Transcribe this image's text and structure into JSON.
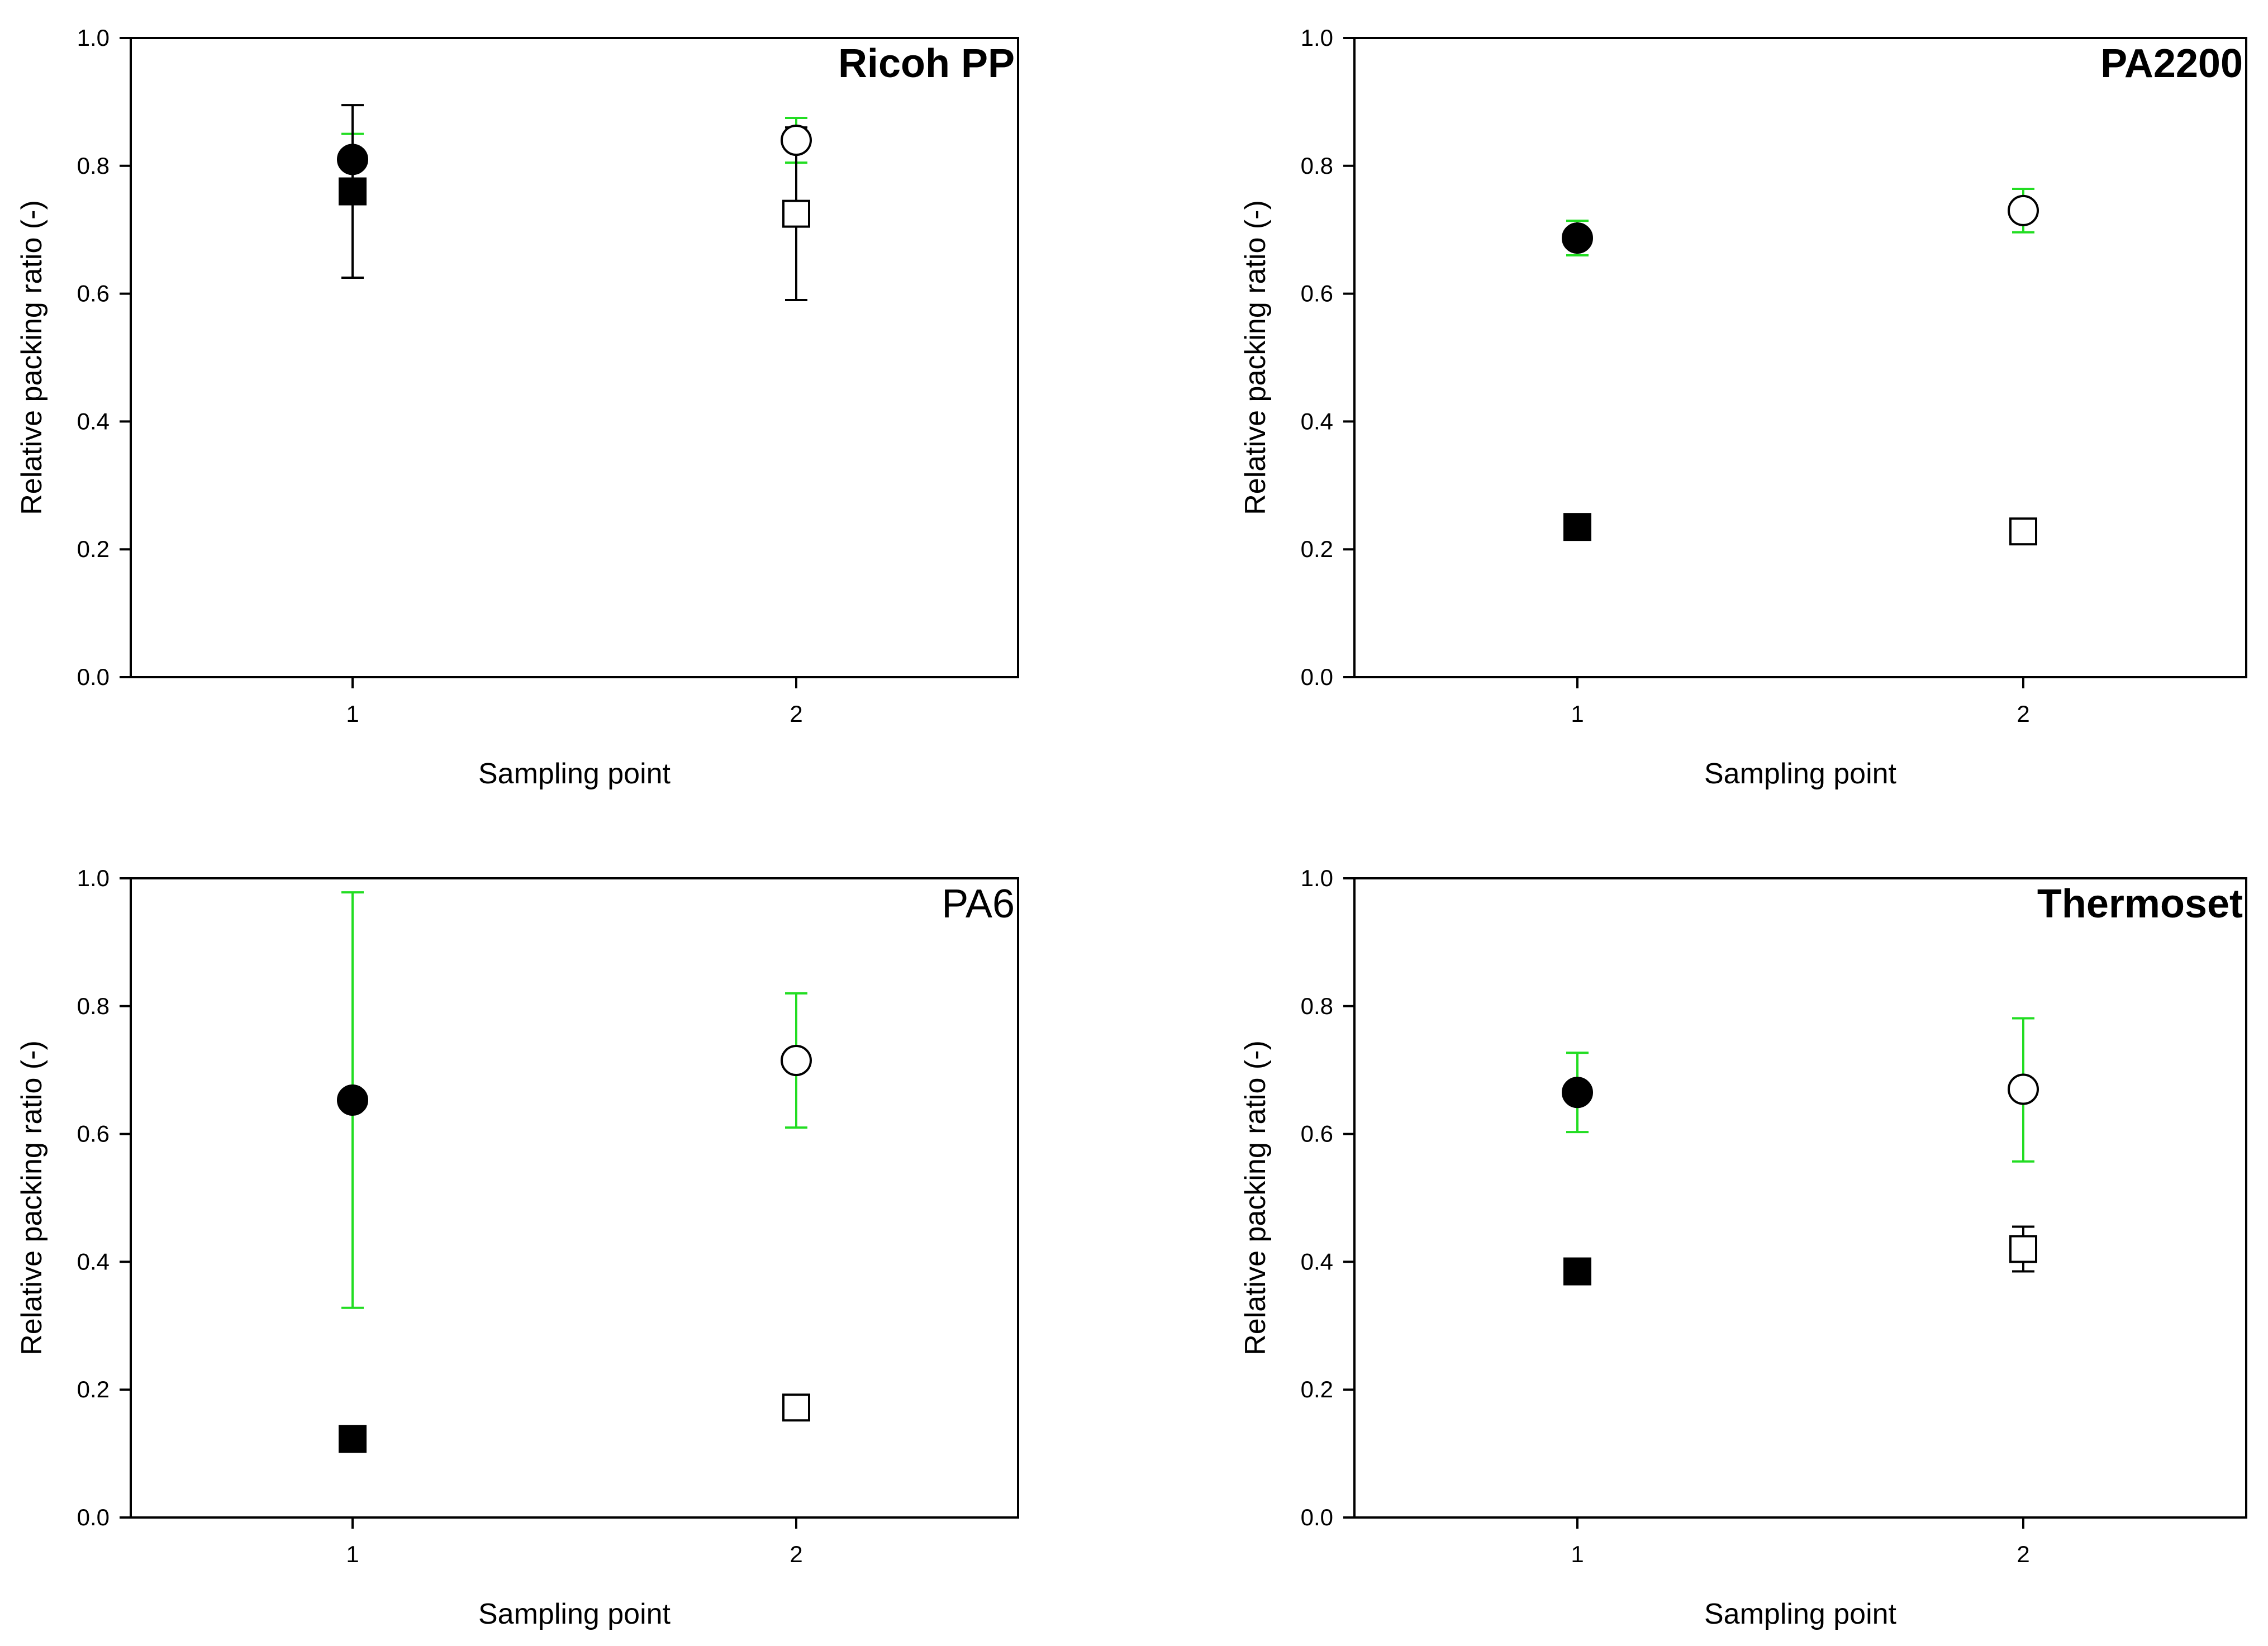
{
  "figure": {
    "colors": {
      "axis": "#000000",
      "error_green": "#22dd22",
      "error_black": "#000000"
    },
    "marker_legend": {
      "filled_circle": "sampling point 1 (circle series)",
      "open_circle": "sampling point 2 (circle series)",
      "filled_square": "sampling point 1 (square series)",
      "open_square": "sampling point 2 (square series)"
    }
  },
  "chart_data": [
    {
      "type": "scatter",
      "title": "Ricoh PP",
      "title_bold": true,
      "xlabel": "Sampling point",
      "ylabel": "Relative packing ratio (-)",
      "xlim": [
        0.5,
        2.5
      ],
      "ylim": [
        0,
        1
      ],
      "xticks": [
        "1",
        "2"
      ],
      "yticks": [
        "0.0",
        "0.2",
        "0.4",
        "0.6",
        "0.8",
        "1.0"
      ],
      "series": [
        {
          "name": "circle",
          "shape": "circle",
          "error_color": "#22dd22",
          "points": [
            {
              "x": 1,
              "y": 0.81,
              "lo": 0.77,
              "hi": 0.85,
              "filled": true
            },
            {
              "x": 2,
              "y": 0.84,
              "lo": 0.805,
              "hi": 0.875,
              "filled": false
            }
          ]
        },
        {
          "name": "square",
          "shape": "square",
          "error_color": "#000000",
          "points": [
            {
              "x": 1,
              "y": 0.76,
              "lo": 0.625,
              "hi": 0.895,
              "filled": true
            },
            {
              "x": 2,
              "y": 0.725,
              "lo": 0.59,
              "hi": 0.86,
              "filled": false
            }
          ]
        }
      ]
    },
    {
      "type": "scatter",
      "title": "PA2200",
      "title_bold": true,
      "xlabel": "Sampling point",
      "ylabel": "Relative packing ratio (-)",
      "xlim": [
        0.5,
        2.5
      ],
      "ylim": [
        0,
        1
      ],
      "xticks": [
        "1",
        "2"
      ],
      "yticks": [
        "0.0",
        "0.2",
        "0.4",
        "0.6",
        "0.8",
        "1.0"
      ],
      "series": [
        {
          "name": "circle",
          "shape": "circle",
          "error_color": "#22dd22",
          "points": [
            {
              "x": 1,
              "y": 0.687,
              "lo": 0.66,
              "hi": 0.714,
              "filled": true
            },
            {
              "x": 2,
              "y": 0.73,
              "lo": 0.696,
              "hi": 0.764,
              "filled": false
            }
          ]
        },
        {
          "name": "square",
          "shape": "square",
          "error_color": "#000000",
          "points": [
            {
              "x": 1,
              "y": 0.235,
              "lo": 0.225,
              "hi": 0.245,
              "filled": true
            },
            {
              "x": 2,
              "y": 0.228,
              "lo": 0.218,
              "hi": 0.238,
              "filled": false
            }
          ]
        }
      ]
    },
    {
      "type": "scatter",
      "title": "PA6",
      "title_bold": false,
      "xlabel": "Sampling point",
      "ylabel": "Relative packing ratio (-)",
      "xlim": [
        0.5,
        2.5
      ],
      "ylim": [
        0,
        1
      ],
      "xticks": [
        "1",
        "2"
      ],
      "yticks": [
        "0.0",
        "0.2",
        "0.4",
        "0.6",
        "0.8",
        "1.0"
      ],
      "series": [
        {
          "name": "circle",
          "shape": "circle",
          "error_color": "#22dd22",
          "points": [
            {
              "x": 1,
              "y": 0.653,
              "lo": 0.328,
              "hi": 0.978,
              "filled": true
            },
            {
              "x": 2,
              "y": 0.715,
              "lo": 0.61,
              "hi": 0.82,
              "filled": false
            }
          ]
        },
        {
          "name": "square",
          "shape": "square",
          "error_color": "#000000",
          "points": [
            {
              "x": 1,
              "y": 0.123,
              "lo": 0.113,
              "hi": 0.133,
              "filled": true
            },
            {
              "x": 2,
              "y": 0.172,
              "lo": 0.162,
              "hi": 0.182,
              "filled": false
            }
          ]
        }
      ]
    },
    {
      "type": "scatter",
      "title": "Thermoset",
      "title_bold": true,
      "xlabel": "Sampling point",
      "ylabel": "Relative packing ratio (-)",
      "xlim": [
        0.5,
        2.5
      ],
      "ylim": [
        0,
        1
      ],
      "xticks": [
        "1",
        "2"
      ],
      "yticks": [
        "0.0",
        "0.2",
        "0.4",
        "0.6",
        "0.8",
        "1.0"
      ],
      "series": [
        {
          "name": "circle",
          "shape": "circle",
          "error_color": "#22dd22",
          "points": [
            {
              "x": 1,
              "y": 0.665,
              "lo": 0.603,
              "hi": 0.727,
              "filled": true
            },
            {
              "x": 2,
              "y": 0.67,
              "lo": 0.557,
              "hi": 0.781,
              "filled": false
            }
          ]
        },
        {
          "name": "square",
          "shape": "square",
          "error_color": "#000000",
          "points": [
            {
              "x": 1,
              "y": 0.385,
              "lo": 0.375,
              "hi": 0.395,
              "filled": true
            },
            {
              "x": 2,
              "y": 0.42,
              "lo": 0.385,
              "hi": 0.455,
              "filled": false
            }
          ]
        }
      ]
    }
  ]
}
